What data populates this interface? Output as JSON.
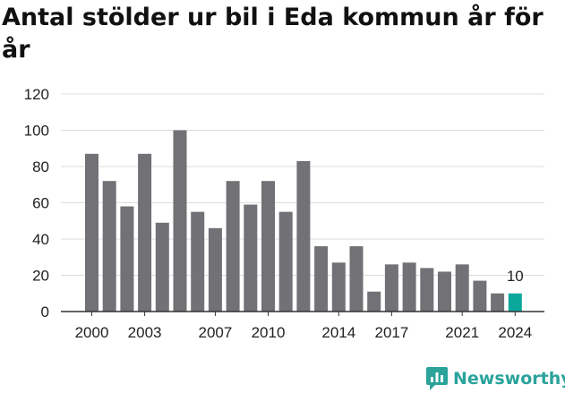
{
  "title": "Antal stölder ur bil i Eda kommun år för år",
  "brand": {
    "name": "Newsworthy",
    "color": "#2aa39b"
  },
  "colors": {
    "bar": "#727176",
    "highlight": "#0aa89b",
    "grid": "#dddddd"
  },
  "chart_data": {
    "type": "bar",
    "title": "Antal stölder ur bil i Eda kommun år för år",
    "categories": [
      "2000",
      "2001",
      "2002",
      "2003",
      "2004",
      "2005",
      "2006",
      "2007",
      "2008",
      "2009",
      "2010",
      "2011",
      "2012",
      "2013",
      "2014",
      "2015",
      "2016",
      "2017",
      "2018",
      "2019",
      "2020",
      "2021",
      "2022",
      "2023",
      "2024"
    ],
    "values": [
      87,
      72,
      58,
      87,
      49,
      100,
      55,
      46,
      72,
      59,
      72,
      55,
      83,
      36,
      27,
      36,
      11,
      26,
      27,
      24,
      22,
      26,
      17,
      10,
      10
    ],
    "xtick_labels": [
      "2000",
      "2003",
      "2007",
      "2010",
      "2014",
      "2017",
      "2021",
      "2024"
    ],
    "yticks": [
      0,
      20,
      40,
      60,
      80,
      100,
      120
    ],
    "ylim": [
      0,
      120
    ],
    "highlight_category": "2024",
    "data_labels": [
      {
        "category": "2024",
        "text": "10"
      }
    ],
    "xlabel": "",
    "ylabel": "",
    "grid": true
  }
}
